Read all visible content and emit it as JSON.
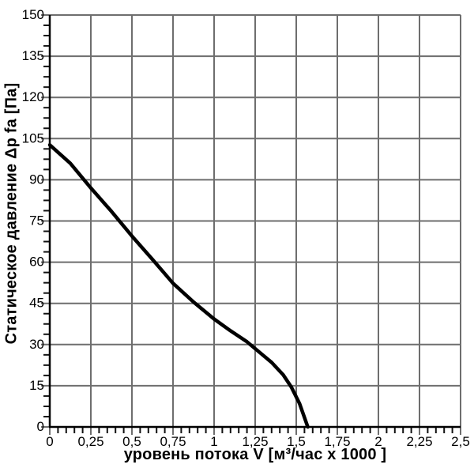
{
  "chart_data": {
    "type": "line",
    "title": "",
    "xlabel": "уровень потока  V [м³/час x 1000 ]",
    "ylabel": "Статическое давление  Δp fa [Па]",
    "xlim": [
      0,
      2.5
    ],
    "ylim": [
      0,
      150
    ],
    "x_major_step": 0.25,
    "x_minor_step": 0.05,
    "y_major_step": 15,
    "y_minor_step": 3.75,
    "x_tick_labels": [
      "0",
      "0,25",
      "0,5",
      "0,75",
      "1",
      "1,25",
      "1,5",
      "1,75",
      "2",
      "2,25",
      "2,5"
    ],
    "y_tick_labels": [
      "0",
      "15",
      "30",
      "45",
      "60",
      "75",
      "90",
      "105",
      "120",
      "135",
      "150"
    ],
    "grid": true,
    "legend": "none",
    "colors": {
      "background": "#ffffff",
      "major_grid": "#6e6e6e",
      "axis": "#000000",
      "tick": "#111111",
      "curve": "#000000",
      "text": "#000000"
    },
    "series": [
      {
        "name": "static-pressure-vs-flow",
        "points": [
          [
            0,
            102.7
          ],
          [
            0.125,
            96
          ],
          [
            0.25,
            87
          ],
          [
            0.375,
            78.5
          ],
          [
            0.5,
            69.5
          ],
          [
            0.625,
            61
          ],
          [
            0.75,
            52.3
          ],
          [
            0.875,
            45.5
          ],
          [
            1.0,
            39.3
          ],
          [
            1.1,
            35
          ],
          [
            1.2,
            31
          ],
          [
            1.3,
            26
          ],
          [
            1.35,
            23.5
          ],
          [
            1.42,
            19
          ],
          [
            1.47,
            14.5
          ],
          [
            1.52,
            8.5
          ],
          [
            1.57,
            0
          ]
        ]
      }
    ]
  }
}
